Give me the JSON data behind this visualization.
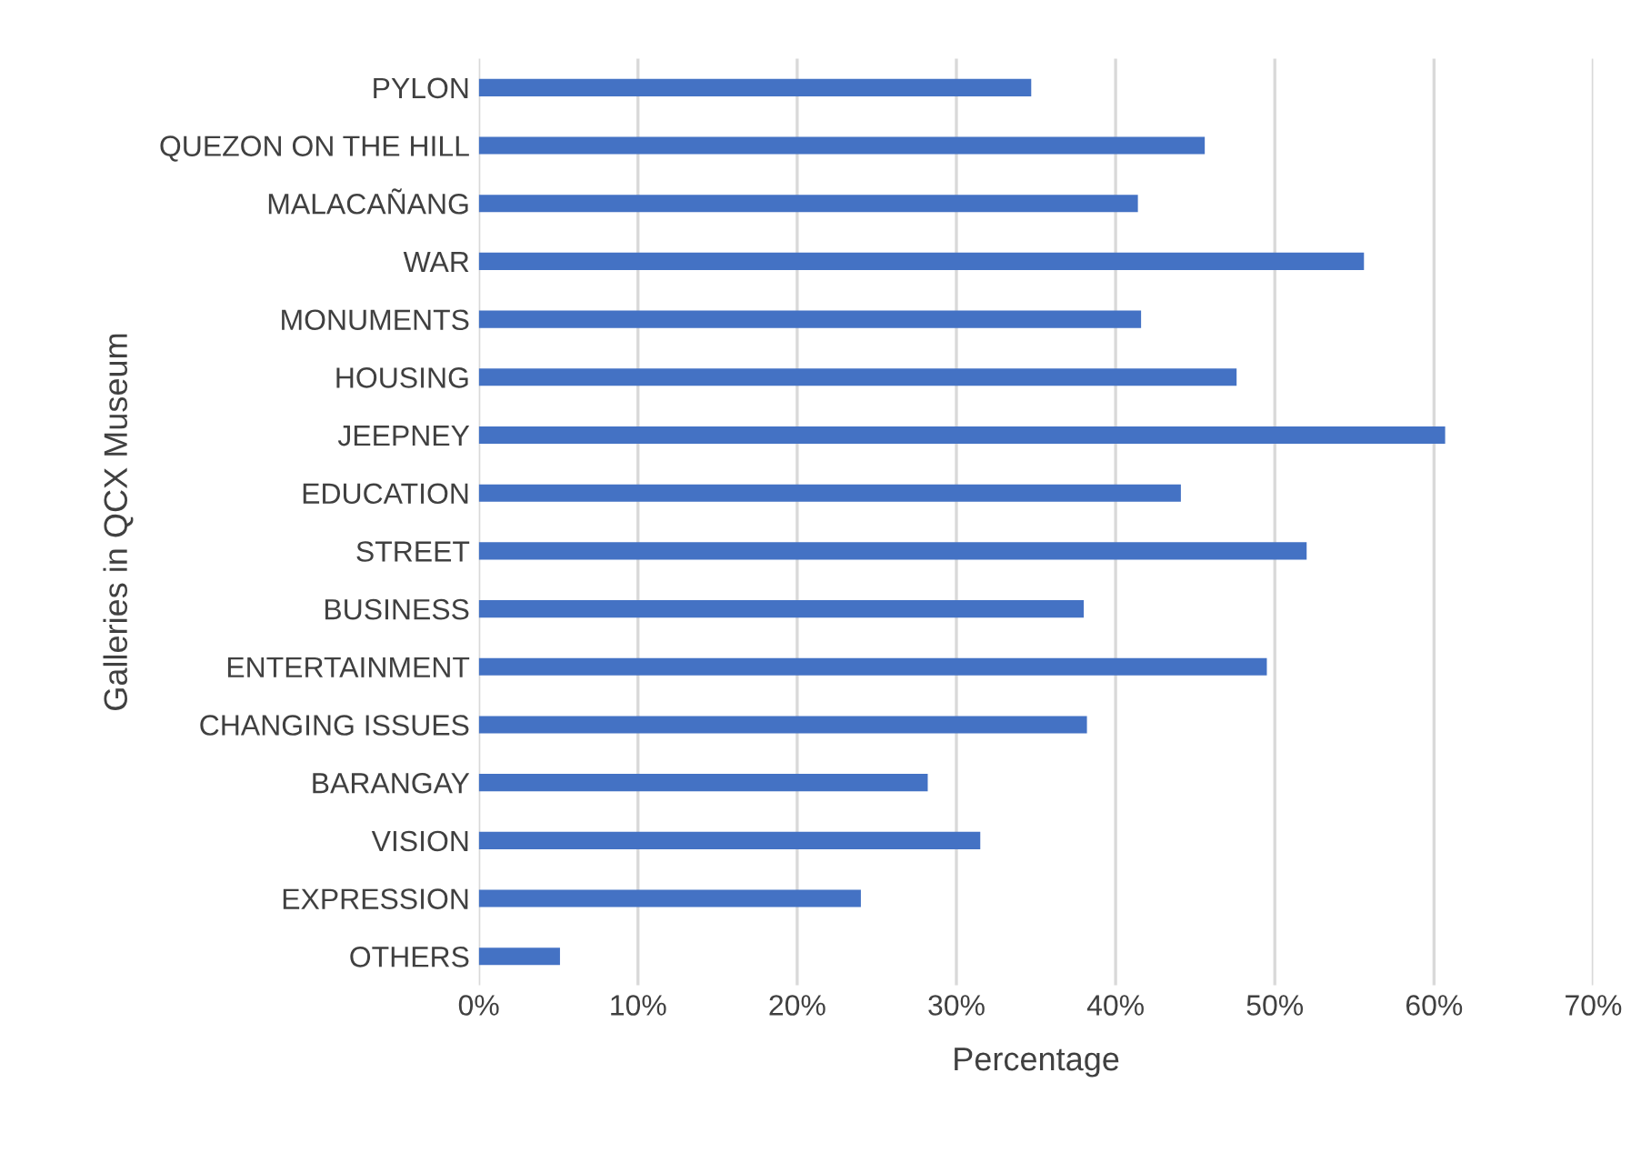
{
  "chart_data": {
    "type": "bar",
    "orientation": "horizontal",
    "xlabel": "Percentage",
    "ylabel": "Galleries in QCX Museum",
    "categories": [
      "PYLON",
      "QUEZON ON THE HILL",
      "MALACAÑANG",
      "WAR",
      "MONUMENTS",
      "HOUSING",
      "JEEPNEY",
      "EDUCATION",
      "STREET",
      "BUSINESS",
      "ENTERTAINMENT",
      "CHANGING ISSUES",
      "BARANGAY",
      "VISION",
      "EXPRESSION",
      "OTHERS"
    ],
    "values": [
      34.7,
      45.6,
      41.4,
      55.6,
      41.6,
      47.6,
      60.7,
      44.1,
      52.0,
      38.0,
      49.5,
      38.2,
      28.2,
      31.5,
      24.0,
      5.1
    ],
    "color": "#4472c4",
    "xlim": [
      0,
      70
    ],
    "xticks": [
      {
        "value": 0,
        "label": "0%"
      },
      {
        "value": 10,
        "label": "10%"
      },
      {
        "value": 20,
        "label": "20%"
      },
      {
        "value": 30,
        "label": "30%"
      },
      {
        "value": 40,
        "label": "40%"
      },
      {
        "value": 50,
        "label": "50%"
      },
      {
        "value": 60,
        "label": "60%"
      },
      {
        "value": 70,
        "label": "70%"
      }
    ],
    "grid": "x",
    "legend": false
  }
}
